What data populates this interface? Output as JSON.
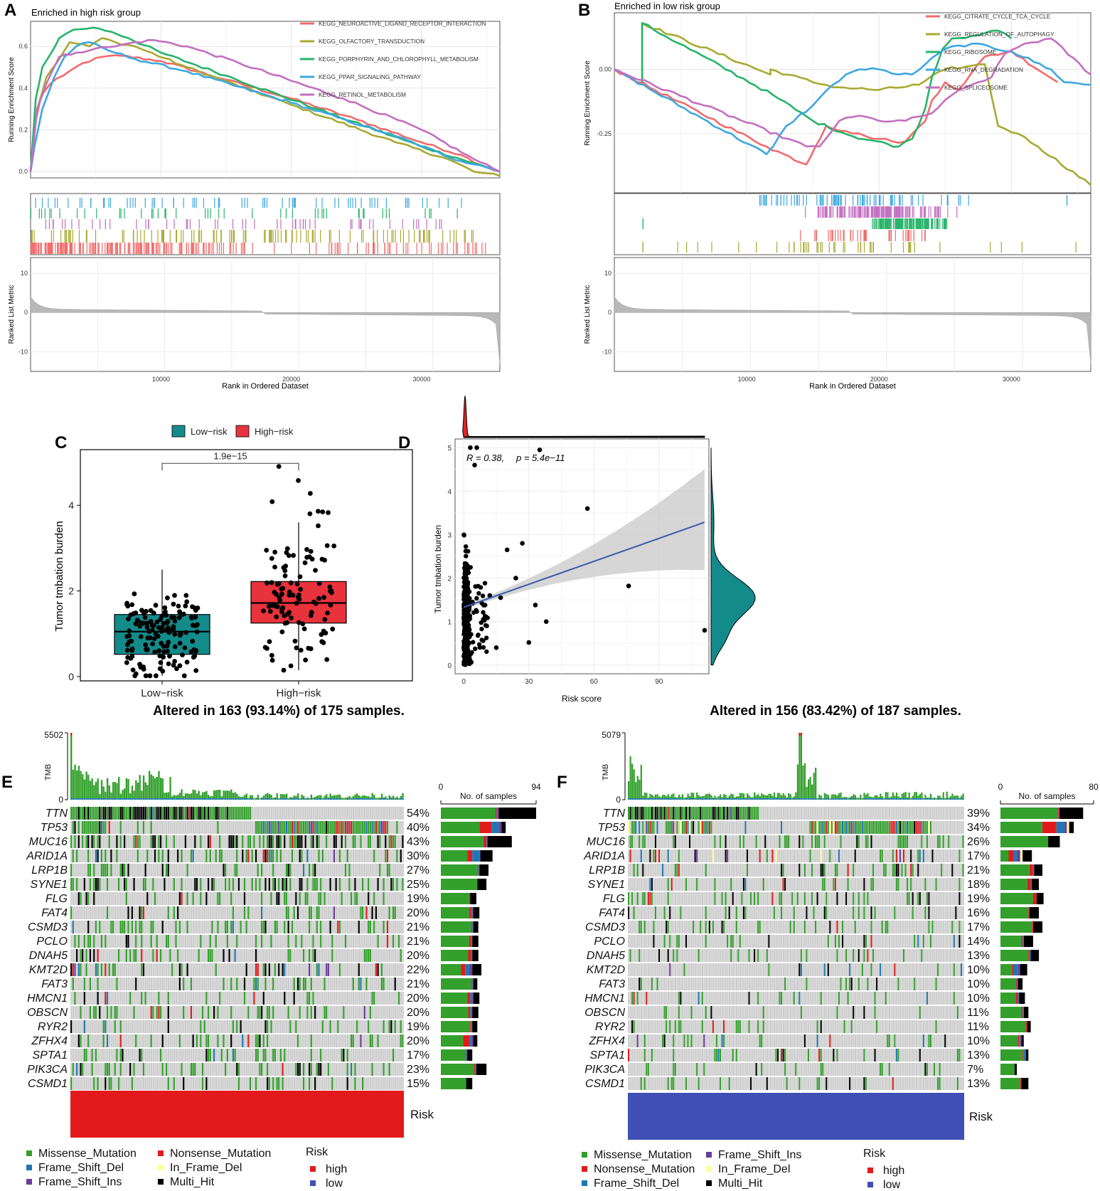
{
  "colors": {
    "neuroactive": "#F26B6B",
    "olfactory": "#A9A932",
    "porphyrin": "#27B46A",
    "ppar": "#3DA7E0",
    "retinol": "#C36FC0",
    "citrate": "#F26B6B",
    "autophagy": "#A9A932",
    "ribosome": "#27B46A",
    "rna": "#3DA7E0",
    "spliceosome": "#C36FC0",
    "missense": "#33A02C",
    "nonsense": "#E31A1C",
    "fs_del": "#1F78B4",
    "fs_ins": "#6A3D9A",
    "if_del": "#FFFF99",
    "multi": "#000000",
    "high": "#E31A1C",
    "low": "#3F4FB5",
    "lowbox": "#138B8B",
    "highbox": "#E8323C",
    "cellbg": "#CCCCCC",
    "grey": "#BEBEBE",
    "line": "#3B5AA8"
  },
  "panels": {
    "A": {
      "letter": "A",
      "title": "Enriched in high risk group",
      "xlabel": "Rank in Ordered Dataset",
      "ylabel_top": "Running Enrichment Score",
      "ylabel_bottom": "Ranked List Metric"
    },
    "B": {
      "letter": "B",
      "title": "Enriched in low risk group",
      "xlabel": "Rank in Ordered Dataset",
      "ylabel_top": "Running Enrichment Score",
      "ylabel_bottom": "Ranked List Metric"
    },
    "C": {
      "letter": "C",
      "ylabel": "Tumor tmbation burden"
    },
    "D": {
      "letter": "D",
      "xlabel": "Risk score",
      "ylabel": "Tumor tmbation burden",
      "stat_R": "R = 0.38,",
      "stat_p": "p = 5.4e−11"
    },
    "E": {
      "letter": "E",
      "headline": "Altered in 163 (93.14%) of 175 samples.",
      "tmb_label": "TMB",
      "tmb_max": "5502",
      "tmb_min": "0",
      "bar_title": "No. of samples",
      "bar_min": "0",
      "bar_max": "94",
      "risk_label": "Risk"
    },
    "F": {
      "letter": "F",
      "headline": "Altered in 156 (83.42%) of 187 samples.",
      "tmb_label": "TMB",
      "tmb_max": "5079",
      "tmb_min": "0",
      "bar_title": "No. of samples",
      "bar_min": "0",
      "bar_max": "80",
      "risk_label": "Risk"
    }
  },
  "legend_E": {
    "missense": "Missense_Mutation",
    "fs_del": "Frame_Shift_Del",
    "fs_ins": "Frame_Shift_Ins",
    "nonsense": "Nonsense_Mutation",
    "if_del": "In_Frame_Del",
    "multi": "Multi_Hit",
    "risk_title": "Risk",
    "risk_high": "high",
    "risk_low": "low"
  },
  "legend_F": {
    "missense": "Missense_Mutation",
    "nonsense": "Nonsense_Mutation",
    "fs_del": "Frame_Shift_Del",
    "fs_ins": "Frame_Shift_Ins",
    "if_del": "In_Frame_Del",
    "multi": "Multi_Hit",
    "risk_title": "Risk",
    "risk_high": "high",
    "risk_low": "low"
  },
  "chart_data": [
    {
      "id": "A",
      "type": "line",
      "title": "Enriched in high risk group",
      "xlabel": "Rank in Ordered Dataset",
      "ylabel": "Running Enrichment Score",
      "xlim": [
        0,
        36000
      ],
      "ylim": [
        -0.03,
        0.72
      ],
      "yticks": [
        "0.0",
        "0.2",
        "0.4",
        "0.6"
      ],
      "xticks": [
        "10000",
        "20000",
        "30000"
      ],
      "series": [
        {
          "name": "KEGG_NEUROACTIVE_LIGAND_RECEPTOR_INTERACTION",
          "key": "neuroactive",
          "x": [
            0,
            300,
            800,
            1500,
            2500,
            4000,
            5500,
            7000,
            10000,
            15000,
            20000,
            25000,
            30000,
            33000,
            35000,
            36000
          ],
          "y": [
            0,
            0.22,
            0.36,
            0.42,
            0.46,
            0.52,
            0.55,
            0.555,
            0.53,
            0.44,
            0.35,
            0.25,
            0.14,
            0.08,
            0.02,
            0.0
          ]
        },
        {
          "name": "KEGG_OLFACTORY_TRANSDUCTION",
          "key": "olfactory",
          "x": [
            0,
            500,
            1200,
            2000,
            3000,
            4500,
            5500,
            6500,
            8000,
            12000,
            20000,
            28000,
            32000,
            34000,
            36000
          ],
          "y": [
            0,
            0.3,
            0.45,
            0.52,
            0.62,
            0.6,
            0.64,
            0.62,
            0.6,
            0.5,
            0.32,
            0.14,
            0.06,
            0.0,
            -0.02
          ]
        },
        {
          "name": "KEGG_PORPHYRIN_AND_CHLOROPHYLL_METABOLISM",
          "key": "porphyrin",
          "x": [
            0,
            400,
            900,
            1500,
            2200,
            3300,
            4800,
            6200,
            7500,
            10000,
            15000,
            22000,
            30000,
            34000,
            36000
          ],
          "y": [
            0,
            0.35,
            0.5,
            0.56,
            0.64,
            0.68,
            0.69,
            0.67,
            0.64,
            0.57,
            0.46,
            0.3,
            0.12,
            0.04,
            0.0
          ]
        },
        {
          "name": "KEGG_PPAR_SIGNALING_PATHWAY",
          "key": "ppar",
          "x": [
            0,
            300,
            900,
            1800,
            2600,
            3500,
            4500,
            6000,
            8000,
            12000,
            20000,
            28000,
            33000,
            34500,
            36000
          ],
          "y": [
            0,
            0.12,
            0.3,
            0.45,
            0.55,
            0.6,
            0.62,
            0.58,
            0.54,
            0.48,
            0.33,
            0.17,
            0.05,
            0.03,
            0.0
          ]
        },
        {
          "name": "KEGG_RETINOL_METABOLISM",
          "key": "retinol",
          "x": [
            0,
            500,
            1200,
            2200,
            3500,
            5000,
            6500,
            8000,
            9500,
            12000,
            16000,
            24000,
            30000,
            34000,
            36000
          ],
          "y": [
            0,
            0.3,
            0.42,
            0.55,
            0.57,
            0.59,
            0.6,
            0.62,
            0.63,
            0.6,
            0.52,
            0.35,
            0.2,
            0.06,
            0.0
          ]
        }
      ]
    },
    {
      "id": "B",
      "type": "line",
      "title": "Enriched in low risk group",
      "xlabel": "Rank in Ordered Dataset",
      "ylabel": "Running Enrichment Score",
      "xlim": [
        0,
        36000
      ],
      "ylim": [
        -0.48,
        0.22
      ],
      "yticks": [
        "-0.25",
        "0.00"
      ],
      "xticks": [
        "10000",
        "20000",
        "30000"
      ],
      "series": [
        {
          "name": "KEGG_CITRATE_CYCLE_TCA_CYCLE",
          "key": "citrate",
          "x": [
            0,
            11500,
            14500,
            15200,
            16000,
            17500,
            19000,
            21000,
            22000,
            23500,
            24000,
            25000,
            26000,
            28000,
            30000,
            33500
          ],
          "y": [
            0,
            -0.3,
            -0.37,
            -0.3,
            -0.22,
            -0.24,
            -0.26,
            -0.28,
            -0.28,
            -0.2,
            -0.12,
            -0.05,
            -0.08,
            0.05,
            0.07,
            -0.05
          ]
        },
        {
          "name": "KEGG_REGULATION_OF_AUTOPHAGY",
          "key": "autophagy",
          "x": [
            2100,
            2100,
            11800,
            11800,
            15000,
            17000,
            20000,
            23000,
            25000,
            26500,
            28000,
            29000,
            30500,
            32000,
            36000
          ],
          "y": [
            -0.05,
            0.18,
            -0.02,
            0.0,
            -0.05,
            -0.07,
            -0.08,
            -0.06,
            0.0,
            0.01,
            0.02,
            -0.22,
            -0.25,
            -0.3,
            -0.45
          ]
        },
        {
          "name": "KEGG_RIBOSOME",
          "key": "ribosome",
          "x": [
            2100,
            2100,
            12000,
            15000,
            18000,
            21500,
            22500,
            23500,
            24000,
            24800,
            25500,
            27000,
            28500,
            29500,
            30000
          ],
          "y": [
            -0.05,
            0.18,
            -0.1,
            -0.2,
            -0.26,
            -0.3,
            -0.27,
            -0.15,
            -0.03,
            0.08,
            0.12,
            0.13,
            0.15,
            0.14,
            0.12
          ]
        },
        {
          "name": "KEGG_RNA_DEGRADATION",
          "key": "rna",
          "x": [
            0,
            11500,
            12000,
            13000,
            15000,
            16500,
            17500,
            18500,
            20000,
            21500,
            22500,
            23500,
            25000,
            27000,
            30000,
            33000,
            34000,
            36000
          ],
          "y": [
            0,
            -0.33,
            -0.3,
            -0.22,
            -0.14,
            -0.06,
            -0.02,
            0.0,
            0.0,
            -0.02,
            -0.02,
            0.02,
            0.08,
            0.1,
            0.07,
            0.0,
            -0.05,
            -0.06
          ]
        },
        {
          "name": "KEGG_SPLICEOSOME",
          "key": "spliceosome",
          "x": [
            0,
            14500,
            15500,
            17000,
            18500,
            20000,
            22000,
            24000,
            25500,
            27000,
            28500,
            29500,
            31000,
            33000,
            36000
          ],
          "y": [
            0,
            -0.3,
            -0.3,
            -0.2,
            -0.18,
            -0.2,
            -0.2,
            -0.17,
            -0.1,
            -0.06,
            -0.03,
            0.06,
            0.1,
            0.12,
            -0.02
          ]
        }
      ]
    },
    {
      "id": "A_metric",
      "type": "area",
      "ylabel": "Ranked List Metric",
      "ylim": [
        -15,
        14
      ],
      "yticks": [
        "10",
        "0",
        "-10"
      ],
      "xticks": [
        "10000",
        "20000",
        "30000"
      ]
    },
    {
      "id": "B_metric",
      "type": "area",
      "ylabel": "Ranked List Metric",
      "ylim": [
        -15,
        14
      ],
      "yticks": [
        "10",
        "0",
        "-10"
      ],
      "xticks": [
        "10000",
        "20000",
        "30000"
      ]
    },
    {
      "id": "C",
      "type": "box",
      "ylabel": "Tumor tmbation burden",
      "legend": [
        "Low−risk",
        "High−risk"
      ],
      "categories": [
        "Low−risk",
        "High−risk"
      ],
      "ylim": [
        -0.1,
        5.3
      ],
      "yticks": [
        "0",
        "2",
        "4"
      ],
      "pvalue": "1.9e−15",
      "boxes": [
        {
          "name": "Low−risk",
          "q1": 0.52,
          "median": 1.05,
          "q3": 1.45,
          "wlo": 0.02,
          "whi": 2.5
        },
        {
          "name": "High−risk",
          "q1": 1.25,
          "median": 1.72,
          "q3": 2.22,
          "wlo": 0.15,
          "whi": 3.6
        }
      ]
    },
    {
      "id": "D",
      "type": "scatter",
      "xlabel": "Risk score",
      "ylabel": "Tumor tmbation burden",
      "xlim": [
        -4,
        113
      ],
      "ylim": [
        -0.2,
        5.2
      ],
      "xticks": [
        "0",
        "30",
        "60",
        "90"
      ],
      "yticks": [
        "0",
        "1",
        "2",
        "3",
        "4",
        "5"
      ],
      "fit": {
        "intercept": 1.33,
        "slope": 0.0176
      },
      "outliers": [
        [
          57,
          3.6
        ],
        [
          76,
          1.82
        ],
        [
          111,
          0.8
        ],
        [
          33,
          1.38
        ],
        [
          38,
          1.0
        ],
        [
          30,
          0.52
        ],
        [
          27,
          2.8
        ],
        [
          24,
          2.0
        ],
        [
          20,
          2.65
        ],
        [
          17,
          1.55
        ],
        [
          12,
          1.6
        ],
        [
          15,
          0.4
        ],
        [
          9,
          1.05
        ],
        [
          3,
          5.0
        ],
        [
          6,
          5.0
        ],
        [
          35,
          4.95
        ],
        [
          5,
          4.6
        ]
      ]
    },
    {
      "id": "E",
      "type": "heatmap",
      "samples_total": 175,
      "genes": [
        "TTN",
        "TP53",
        "MUC16",
        "ARID1A",
        "LRP1B",
        "SYNE1",
        "FLG",
        "FAT4",
        "CSMD3",
        "PCLO",
        "DNAH5",
        "KMT2D",
        "FAT3",
        "HMCN1",
        "OBSCN",
        "RYR2",
        "ZFHX4",
        "SPTA1",
        "PIK3CA",
        "CSMD1"
      ],
      "percents": [
        "54%",
        "40%",
        "43%",
        "30%",
        "27%",
        "25%",
        "19%",
        "20%",
        "21%",
        "21%",
        "20%",
        "22%",
        "21%",
        "20%",
        "20%",
        "19%",
        "20%",
        "17%",
        "23%",
        "15%"
      ],
      "bars": [
        [
          54,
          1,
          1,
          1,
          0,
          37
        ],
        [
          38,
          12,
          7,
          3,
          0,
          4
        ],
        [
          42,
          3,
          1,
          0,
          0,
          24
        ],
        [
          26,
          5,
          7,
          1,
          0,
          12
        ],
        [
          36,
          1,
          1,
          0,
          0,
          9
        ],
        [
          36,
          0,
          0,
          0,
          0,
          9
        ],
        [
          28,
          1,
          0,
          0,
          0,
          6
        ],
        [
          28,
          2,
          1,
          1,
          0,
          6
        ],
        [
          30,
          1,
          1,
          0,
          0,
          5
        ],
        [
          28,
          2,
          1,
          0,
          0,
          6
        ],
        [
          27,
          3,
          1,
          0,
          0,
          6
        ],
        [
          20,
          4,
          4,
          3,
          0,
          9
        ],
        [
          30,
          1,
          1,
          0,
          0,
          4
        ],
        [
          26,
          3,
          2,
          1,
          0,
          6
        ],
        [
          27,
          2,
          1,
          1,
          0,
          6
        ],
        [
          29,
          1,
          1,
          0,
          0,
          5
        ],
        [
          22,
          6,
          2,
          2,
          0,
          4
        ],
        [
          24,
          1,
          1,
          0,
          0,
          5
        ],
        [
          33,
          1,
          1,
          0,
          0,
          10
        ],
        [
          25,
          0,
          0,
          0,
          0,
          6
        ]
      ],
      "bar_axis": [
        "0",
        "94"
      ],
      "risk": "high"
    },
    {
      "id": "F",
      "type": "heatmap",
      "samples_total": 187,
      "genes": [
        "TTN",
        "TP53",
        "MUC16",
        "ARID1A",
        "LRP1B",
        "SYNE1",
        "FLG",
        "FAT4",
        "CSMD3",
        "PCLO",
        "DNAH5",
        "KMT2D",
        "FAT3",
        "HMCN1",
        "OBSCN",
        "RYR2",
        "ZFHX4",
        "SPTA1",
        "PIK3CA",
        "CSMD1"
      ],
      "percents": [
        "39%",
        "34%",
        "26%",
        "17%",
        "21%",
        "18%",
        "19%",
        "16%",
        "17%",
        "14%",
        "13%",
        "10%",
        "10%",
        "10%",
        "11%",
        "11%",
        "10%",
        "13%",
        "7%",
        "13%"
      ],
      "bars": [
        [
          49,
          1,
          0,
          1,
          0,
          20
        ],
        [
          36,
          12,
          7,
          2,
          2,
          4
        ],
        [
          41,
          0,
          0,
          0,
          0,
          10
        ],
        [
          7,
          4,
          3,
          3,
          2,
          8
        ],
        [
          25,
          3,
          1,
          0,
          0,
          7
        ],
        [
          23,
          3,
          1,
          0,
          0,
          6
        ],
        [
          28,
          3,
          0,
          0,
          0,
          6
        ],
        [
          24,
          1,
          0,
          0,
          0,
          8
        ],
        [
          27,
          1,
          0,
          0,
          0,
          8
        ],
        [
          18,
          1,
          1,
          0,
          0,
          8
        ],
        [
          24,
          1,
          1,
          0,
          0,
          7
        ],
        [
          10,
          1,
          4,
          2,
          0,
          6
        ],
        [
          13,
          1,
          1,
          0,
          0,
          4
        ],
        [
          13,
          2,
          1,
          0,
          0,
          5
        ],
        [
          18,
          1,
          1,
          0,
          0,
          4
        ],
        [
          22,
          1,
          0,
          0,
          0,
          3
        ],
        [
          15,
          1,
          1,
          1,
          0,
          2
        ],
        [
          19,
          1,
          2,
          0,
          0,
          2
        ],
        [
          12,
          0,
          0,
          0,
          0,
          2
        ],
        [
          17,
          1,
          0,
          0,
          0,
          6
        ]
      ],
      "bar_axis": [
        "0",
        "80"
      ],
      "risk": "low"
    }
  ]
}
